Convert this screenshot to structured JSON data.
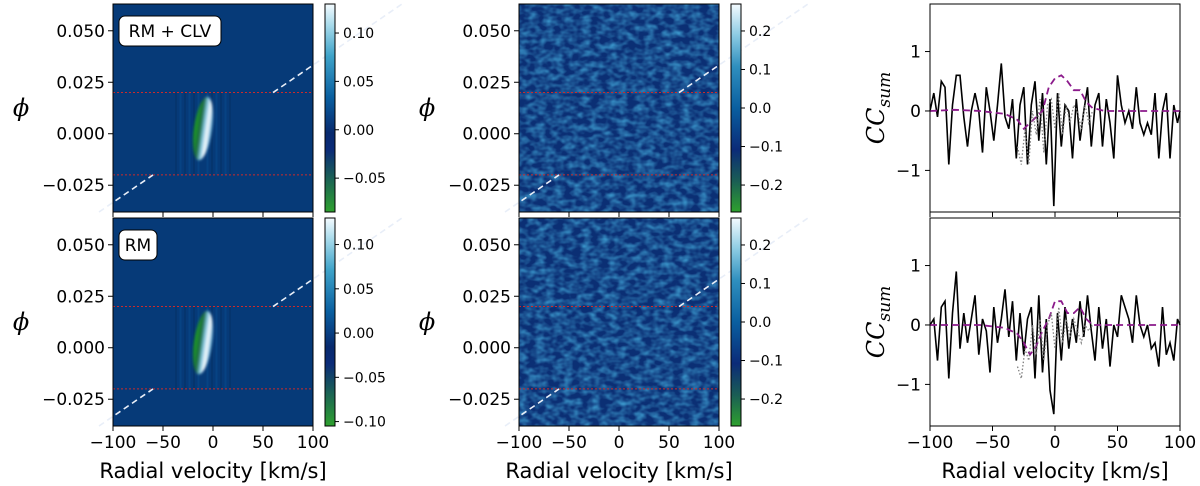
{
  "chart_data": [
    {
      "type": "heatmap",
      "panel": "row1-model",
      "label": "RM + CLV",
      "xlabel": "Radial velocity [km/s]",
      "ylabel": "ϕ",
      "xlim": [
        -100,
        100
      ],
      "ylim": [
        -0.038,
        0.063
      ],
      "xticks": [
        "−100",
        "−50",
        "0",
        "50",
        "100"
      ],
      "yticks": [
        "0.050",
        "0.025",
        "0.000",
        "−0.025"
      ],
      "colorbar_ticks": [
        "0.10",
        "0.05",
        "0.00",
        "−0.05"
      ],
      "clim": [
        -0.085,
        0.13
      ],
      "transit_bounds_phi": [
        -0.02,
        0.02
      ],
      "planet_trail_rv": {
        "phi_at_zero_rv": 0.0,
        "slope_kms_per_phase": 3000
      },
      "feature": {
        "rv_center": -10,
        "phi_range": [
          -0.013,
          0.018
        ],
        "value": 0.12
      }
    },
    {
      "type": "heatmap",
      "panel": "row1-data",
      "xlabel": "Radial velocity [km/s]",
      "ylabel": "ϕ",
      "xlim": [
        -100,
        100
      ],
      "ylim": [
        -0.038,
        0.063
      ],
      "xticks": [
        "−100",
        "−50",
        "0",
        "50",
        "100"
      ],
      "yticks": [
        "0.050",
        "0.025",
        "0.000",
        "−0.025"
      ],
      "colorbar_ticks": [
        "0.2",
        "0.1",
        "0.0",
        "−0.1",
        "−0.2"
      ],
      "clim": [
        -0.27,
        0.27
      ],
      "transit_bounds_phi": [
        -0.02,
        0.02
      ]
    },
    {
      "type": "line",
      "panel": "row1-ccsum",
      "xlabel": "Radial velocity [km/s]",
      "ylabel": "CC_sum",
      "xlim": [
        -100,
        100
      ],
      "ylim": [
        -1.7,
        1.8
      ],
      "xticks": [
        "−100",
        "−50",
        "0",
        "50",
        "100"
      ],
      "yticks": [
        "1",
        "0",
        "−1"
      ],
      "series": [
        {
          "style": "solid",
          "color": "#000000",
          "x": [
            -100,
            -97,
            -94,
            -91,
            -88,
            -85,
            -82,
            -79,
            -76,
            -73,
            -70,
            -67,
            -64,
            -61,
            -58,
            -55,
            -52,
            -49,
            -46,
            -43,
            -40,
            -37,
            -34,
            -31,
            -28,
            -25,
            -22,
            -19,
            -16,
            -13,
            -10,
            -7,
            -4,
            -1,
            2,
            5,
            8,
            11,
            14,
            17,
            20,
            23,
            26,
            29,
            32,
            35,
            38,
            41,
            44,
            47,
            50,
            53,
            56,
            59,
            62,
            65,
            68,
            71,
            74,
            77,
            80,
            83,
            86,
            89,
            92,
            95,
            98,
            100
          ],
          "y": [
            0.0,
            0.3,
            -0.1,
            0.5,
            0.4,
            -0.9,
            0.1,
            0.6,
            0.6,
            -0.1,
            -0.6,
            0.0,
            0.3,
            0.0,
            -0.7,
            0.4,
            0.0,
            -0.5,
            0.1,
            0.8,
            -0.1,
            -0.3,
            0.2,
            -0.8,
            0.1,
            0.4,
            -0.9,
            0.1,
            0.5,
            -0.5,
            0.3,
            -0.9,
            0.2,
            -1.6,
            0.3,
            -0.6,
            0.1,
            0.0,
            -0.8,
            0.2,
            -0.5,
            0.0,
            0.4,
            -0.6,
            0.1,
            0.3,
            -0.6,
            0.2,
            -0.2,
            -0.8,
            0.6,
            0.1,
            -0.2,
            0.0,
            -0.3,
            0.4,
            -0.2,
            -0.4,
            -0.2,
            -0.4,
            0.3,
            -0.8,
            0.0,
            0.3,
            -0.8,
            0.1,
            -0.2,
            0.0
          ]
        },
        {
          "style": "dashed",
          "color": "#8b1a8b",
          "x": [
            -100,
            -80,
            -60,
            -40,
            -30,
            -25,
            -20,
            -15,
            -10,
            -5,
            0,
            5,
            10,
            15,
            20,
            25,
            30,
            40,
            60,
            80,
            100
          ],
          "y": [
            0.0,
            0.02,
            0.0,
            -0.05,
            -0.15,
            -0.3,
            -0.2,
            -0.1,
            0.0,
            0.4,
            0.55,
            0.6,
            0.5,
            0.35,
            0.35,
            0.15,
            0.05,
            0.0,
            0.0,
            0.0,
            0.0
          ]
        },
        {
          "style": "dotted",
          "color": "#808080",
          "x": [
            -30,
            -27,
            -24,
            -21,
            -18,
            -15,
            -12,
            -9,
            -6,
            -3,
            0,
            3,
            6,
            9,
            12,
            15,
            18,
            21,
            24,
            27,
            30
          ],
          "y": [
            -0.6,
            -0.9,
            -0.3,
            -0.9,
            0.0,
            -0.4,
            0.2,
            -0.7,
            0.1,
            0.2,
            -0.3,
            0.3,
            -0.4,
            0.1,
            -0.2,
            0.1,
            0.0,
            -0.3,
            0.1,
            -0.2,
            0.0
          ]
        }
      ]
    },
    {
      "type": "heatmap",
      "panel": "row2-model",
      "label": "RM",
      "xlabel": "Radial velocity [km/s]",
      "ylabel": "ϕ",
      "xlim": [
        -100,
        100
      ],
      "ylim": [
        -0.038,
        0.063
      ],
      "xticks": [
        "−100",
        "−50",
        "0",
        "50",
        "100"
      ],
      "yticks": [
        "0.050",
        "0.025",
        "0.000",
        "−0.025"
      ],
      "colorbar_ticks": [
        "0.10",
        "0.05",
        "0.00",
        "−0.05",
        "−0.10"
      ],
      "clim": [
        -0.105,
        0.13
      ],
      "transit_bounds_phi": [
        -0.02,
        0.02
      ],
      "feature": {
        "rv_center": -10,
        "phi_range": [
          -0.013,
          0.018
        ],
        "value": 0.12
      }
    },
    {
      "type": "heatmap",
      "panel": "row2-data",
      "xlabel": "Radial velocity [km/s]",
      "ylabel": "ϕ",
      "xlim": [
        -100,
        100
      ],
      "ylim": [
        -0.038,
        0.063
      ],
      "xticks": [
        "−100",
        "−50",
        "0",
        "50",
        "100"
      ],
      "yticks": [
        "0.050",
        "0.025",
        "0.000",
        "−0.025"
      ],
      "colorbar_ticks": [
        "0.2",
        "0.1",
        "0.0",
        "−0.1",
        "−0.2"
      ],
      "clim": [
        -0.27,
        0.27
      ],
      "transit_bounds_phi": [
        -0.02,
        0.02
      ]
    },
    {
      "type": "line",
      "panel": "row2-ccsum",
      "xlabel": "Radial velocity [km/s]",
      "ylabel": "CC_sum",
      "xlim": [
        -100,
        100
      ],
      "ylim": [
        -1.7,
        1.8
      ],
      "xticks": [
        "−100",
        "−50",
        "0",
        "50",
        "100"
      ],
      "yticks": [
        "1",
        "0",
        "−1"
      ],
      "series": [
        {
          "style": "solid",
          "color": "#000000",
          "x": [
            -100,
            -97,
            -94,
            -91,
            -88,
            -85,
            -82,
            -79,
            -76,
            -73,
            -70,
            -67,
            -64,
            -61,
            -58,
            -55,
            -52,
            -49,
            -46,
            -43,
            -40,
            -37,
            -34,
            -31,
            -28,
            -25,
            -22,
            -19,
            -16,
            -13,
            -10,
            -7,
            -4,
            -1,
            2,
            5,
            8,
            11,
            14,
            17,
            20,
            23,
            26,
            29,
            32,
            35,
            38,
            41,
            44,
            47,
            50,
            53,
            56,
            59,
            62,
            65,
            68,
            71,
            74,
            77,
            80,
            83,
            86,
            89,
            92,
            95,
            98,
            100
          ],
          "y": [
            0.0,
            0.1,
            -0.6,
            0.3,
            0.4,
            -0.9,
            0.2,
            0.9,
            -0.4,
            0.2,
            -0.3,
            0.1,
            0.5,
            -0.5,
            0.1,
            -0.1,
            -0.8,
            0.3,
            -0.3,
            0.1,
            0.6,
            -0.2,
            0.4,
            -0.6,
            0.2,
            -0.5,
            0.1,
            0.3,
            -0.9,
            0.5,
            -0.8,
            0.1,
            -1.1,
            -1.5,
            0.2,
            -0.6,
            0.3,
            -0.4,
            0.1,
            -0.3,
            0.4,
            -0.2,
            0.5,
            -0.1,
            -0.6,
            0.3,
            -0.4,
            0.1,
            -0.7,
            0.0,
            -0.2,
            0.5,
            0.3,
            0.1,
            -0.3,
            0.5,
            0.0,
            -0.2,
            0.0,
            -0.4,
            -0.3,
            -0.7,
            0.3,
            -0.5,
            -0.3,
            -0.6,
            0.1,
            0.0
          ]
        },
        {
          "style": "dashed",
          "color": "#8b1a8b",
          "x": [
            -100,
            -80,
            -60,
            -40,
            -30,
            -25,
            -20,
            -15,
            -10,
            -5,
            0,
            5,
            10,
            15,
            20,
            25,
            30,
            40,
            60,
            80,
            100
          ],
          "y": [
            0.0,
            0.0,
            0.0,
            -0.05,
            -0.15,
            -0.3,
            -0.5,
            -0.35,
            -0.1,
            0.1,
            0.4,
            0.4,
            0.2,
            0.2,
            0.3,
            0.1,
            0.0,
            0.0,
            0.0,
            0.0,
            0.0
          ]
        },
        {
          "style": "dotted",
          "color": "#808080",
          "x": [
            -30,
            -27,
            -24,
            -21,
            -18,
            -15,
            -12,
            -9,
            -6,
            -3,
            0,
            3,
            6,
            9,
            12,
            15,
            18,
            21,
            24,
            27,
            30
          ],
          "y": [
            -0.7,
            -0.9,
            -0.4,
            -0.6,
            0.0,
            -0.5,
            0.1,
            -0.6,
            0.0,
            0.2,
            -0.4,
            0.3,
            -0.3,
            0.1,
            -0.2,
            0.1,
            -0.1,
            -0.3,
            0.0,
            -0.1,
            0.0
          ]
        }
      ]
    }
  ]
}
